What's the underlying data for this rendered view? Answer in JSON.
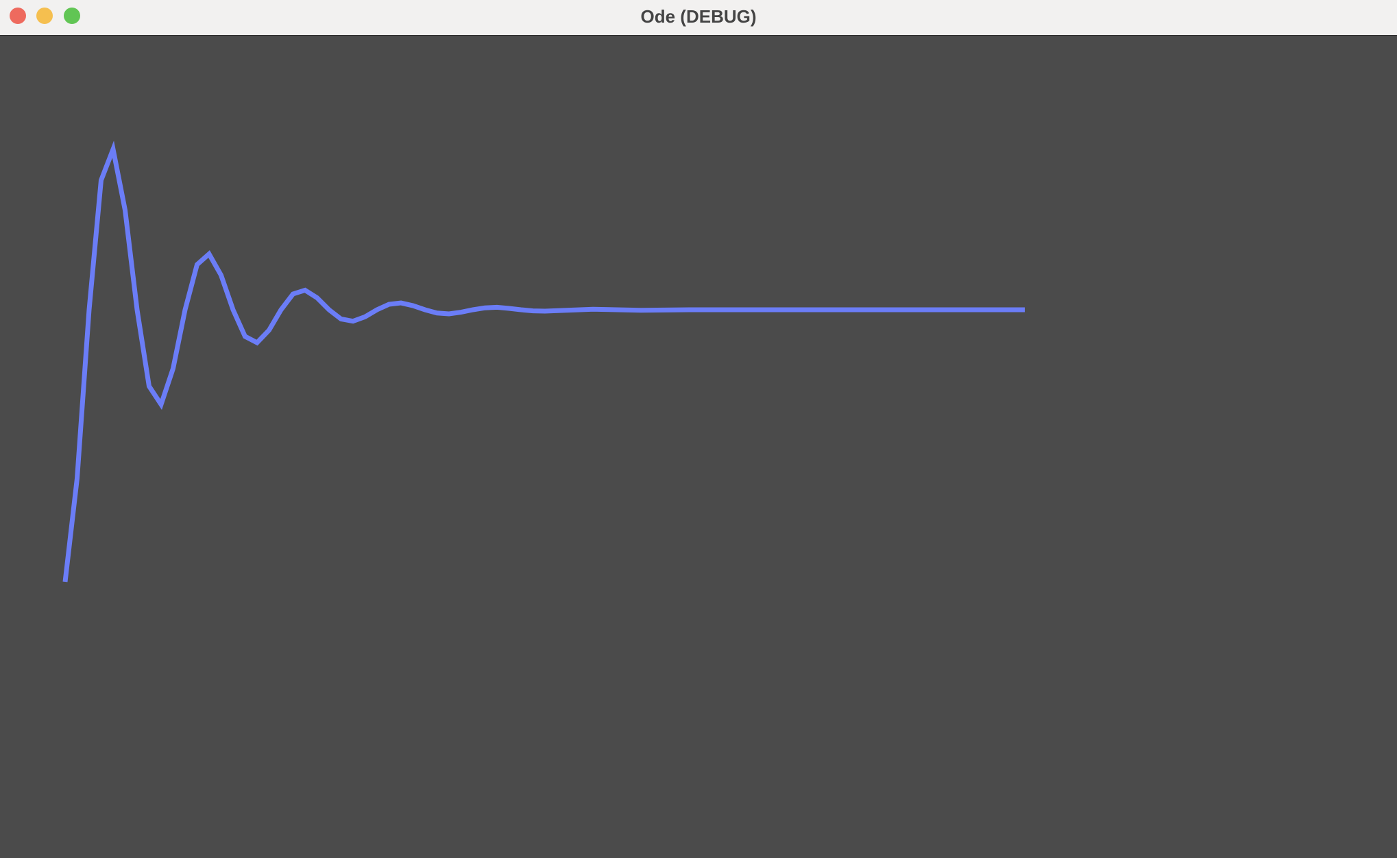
{
  "window": {
    "title": "Ode (DEBUG)"
  },
  "chart_data": {
    "type": "line",
    "x": [
      0,
      0.125,
      0.25,
      0.375,
      0.5,
      0.625,
      0.75,
      0.875,
      1,
      1.125,
      1.25,
      1.375,
      1.5,
      1.625,
      1.75,
      1.875,
      2,
      2.125,
      2.25,
      2.375,
      2.5,
      2.625,
      2.75,
      2.875,
      3,
      3.125,
      3.25,
      3.375,
      3.5,
      3.625,
      3.75,
      3.875,
      4,
      4.125,
      4.25,
      4.375,
      4.5,
      4.625,
      4.75,
      4.875,
      5,
      5.5,
      6,
      6.5,
      7,
      7.5,
      8,
      8.5,
      9,
      9.5,
      10
    ],
    "series": [
      {
        "color": "#6b7df7",
        "values": [
          0,
          0.38,
          1,
          1.476,
          1.59,
          1.366,
          1,
          0.719,
          0.652,
          0.784,
          1,
          1.166,
          1.205,
          1.127,
          1,
          0.902,
          0.879,
          0.925,
          1,
          1.058,
          1.072,
          1.044,
          1,
          0.966,
          0.958,
          0.974,
          1,
          1.02,
          1.025,
          1.015,
          1,
          0.988,
          0.985,
          0.991,
          1,
          1.007,
          1.009,
          1.005,
          1,
          0.996,
          0.995,
          1.002,
          0.998,
          1,
          1,
          1,
          1,
          1,
          1,
          1,
          1
        ]
      }
    ]
  }
}
